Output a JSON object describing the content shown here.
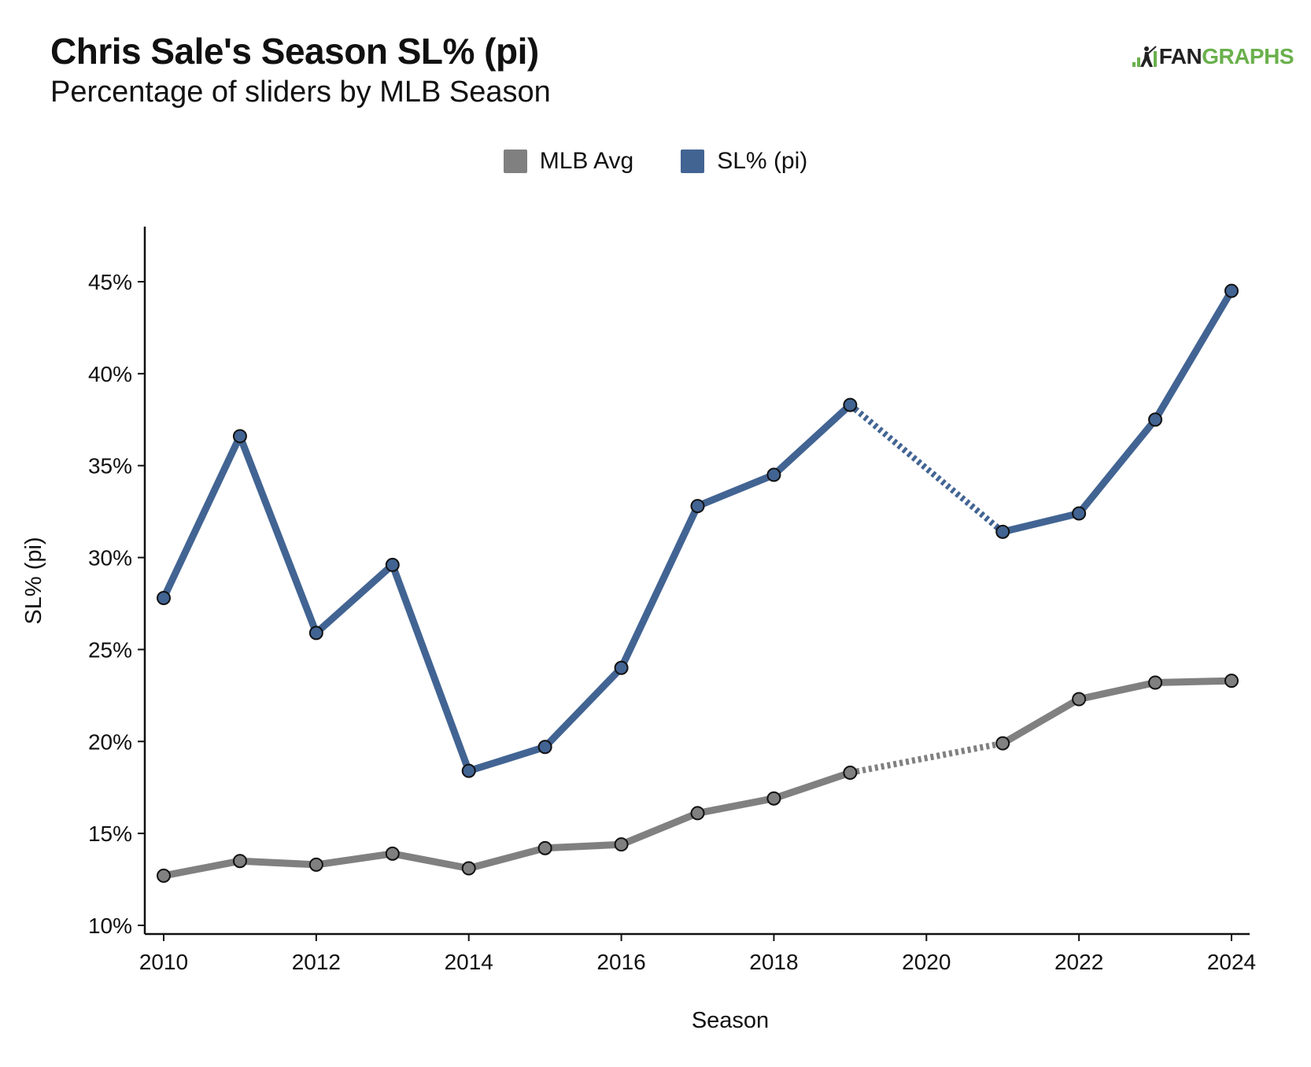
{
  "header": {
    "title": "Chris Sale's Season SL% (pi)",
    "subtitle": "Percentage of sliders by MLB Season"
  },
  "logo": {
    "text_a": "FAN",
    "text_b": "GRAPHS",
    "icon": "batter-icon"
  },
  "colors": {
    "series_sl": "#426493",
    "series_mlb": "#808080"
  },
  "chart_data": {
    "type": "line",
    "title": "Chris Sale's Season SL% (pi)",
    "subtitle": "Percentage of sliders by MLB Season",
    "xlabel": "Season",
    "ylabel": "SL% (pi)",
    "xlim": [
      2010,
      2024
    ],
    "ylim": [
      10,
      47
    ],
    "x_ticks": [
      2010,
      2012,
      2014,
      2016,
      2018,
      2020,
      2022,
      2024
    ],
    "x_tick_labels": [
      "2010",
      "2012",
      "2014",
      "2016",
      "2018",
      "2020",
      "2022",
      "2024"
    ],
    "y_ticks": [
      10,
      15,
      20,
      25,
      30,
      35,
      40,
      45
    ],
    "y_tick_labels": [
      "10%",
      "15%",
      "20%",
      "25%",
      "30%",
      "35%",
      "40%",
      "45%"
    ],
    "grid": false,
    "legend_position": "top-center",
    "gap_between": [
      2019,
      2021
    ],
    "series": [
      {
        "name": "MLB Avg",
        "color": "#808080",
        "x": [
          2010,
          2011,
          2012,
          2013,
          2014,
          2015,
          2016,
          2017,
          2018,
          2019,
          2021,
          2022,
          2023,
          2024
        ],
        "values": [
          12.7,
          13.5,
          13.3,
          13.9,
          13.1,
          14.2,
          14.4,
          16.1,
          16.9,
          18.3,
          19.9,
          22.3,
          23.2,
          23.3
        ]
      },
      {
        "name": "SL% (pi)",
        "color": "#426493",
        "x": [
          2010,
          2011,
          2012,
          2013,
          2014,
          2015,
          2016,
          2017,
          2018,
          2019,
          2021,
          2022,
          2023,
          2024
        ],
        "values": [
          27.8,
          36.6,
          25.9,
          29.6,
          18.4,
          19.7,
          24.0,
          32.8,
          34.5,
          38.3,
          31.4,
          32.4,
          37.5,
          44.5
        ]
      }
    ]
  }
}
